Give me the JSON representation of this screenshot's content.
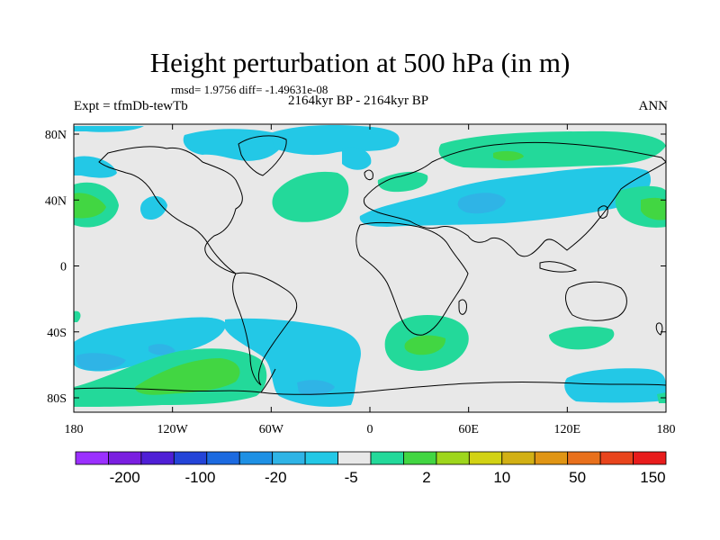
{
  "title": "Height perturbation at 500 hPa (in m)",
  "stats_text": "rmsd= 1.9756 diff= -1.49631e-08",
  "expt_label": "Expt = tfmDb-tewTb",
  "period_label": "2164kyr BP - 2164kyr BP",
  "season_label": "ANN",
  "map": {
    "lon_range": [
      -180,
      180
    ],
    "lat_range": [
      -90,
      90
    ],
    "lat_ticks": [
      "80N",
      "40N",
      "0",
      "40S",
      "80S"
    ],
    "lon_ticks": [
      "180",
      "120W",
      "60W",
      "0",
      "60E",
      "120E",
      "180"
    ],
    "background_color": "#e8e8e8"
  },
  "colorbar": {
    "colors": [
      "#9b30ff",
      "#7a1fe0",
      "#4f1fd6",
      "#2444d8",
      "#1c6ae0",
      "#1e90e4",
      "#2fb4e6",
      "#23c8e6",
      "#e8e8e8",
      "#23d99a",
      "#42d642",
      "#9ed61c",
      "#d2d214",
      "#d2b014",
      "#e09514",
      "#e8701c",
      "#e8441c",
      "#e81c1c"
    ],
    "tick_labels": [
      "-200",
      "-100",
      "-20",
      "-5",
      "2",
      "10",
      "50",
      "150"
    ]
  },
  "chart_data": {
    "type": "heatmap",
    "title": "Height perturbation at 500 hPa (in m)",
    "units": "m",
    "rmsd": 1.9756,
    "diff": -1.49631e-08,
    "contour_levels_left": [
      "-200",
      "-100",
      "-20",
      "-5"
    ],
    "contour_levels_right": [
      "2",
      "10",
      "50",
      "150"
    ],
    "regions": [
      {
        "lon": -170,
        "lat": 42,
        "level": "2 to 10",
        "color": "#42d642"
      },
      {
        "lon": -165,
        "lat": 36,
        "level": "2 to 10",
        "color": "#23d99a"
      },
      {
        "lon": -160,
        "lat": 78,
        "level": "-5 to -2",
        "color": "#23c8e6"
      },
      {
        "lon": -125,
        "lat": 38,
        "level": "-5 to -2",
        "color": "#23c8e6"
      },
      {
        "lon": -60,
        "lat": 80,
        "level": "-5 to -2",
        "color": "#23c8e6"
      },
      {
        "lon": -10,
        "lat": 42,
        "level": "2 to 10",
        "color": "#23d99a"
      },
      {
        "lon": 50,
        "lat": 35,
        "level": "-5 to -2",
        "color": "#23c8e6"
      },
      {
        "lon": 70,
        "lat": 35,
        "level": "-20 to -5",
        "color": "#2fb4e6"
      },
      {
        "lon": 170,
        "lat": 40,
        "level": "2 to 10",
        "color": "#42d642"
      },
      {
        "lon": 90,
        "lat": 78,
        "level": "2 to 10",
        "color": "#23d99a"
      },
      {
        "lon": -40,
        "lat": 70,
        "level": "-5 to -2",
        "color": "#23c8e6"
      },
      {
        "lon": 30,
        "lat": -50,
        "level": "2 to 10",
        "color": "#42d642"
      },
      {
        "lon": 30,
        "lat": -40,
        "level": "2 to 10",
        "color": "#23d99a"
      },
      {
        "lon": 110,
        "lat": -45,
        "level": "2 to 10",
        "color": "#23d99a"
      },
      {
        "lon": 140,
        "lat": -78,
        "level": "-5 to -2",
        "color": "#23c8e6"
      },
      {
        "lon": -150,
        "lat": -55,
        "level": "-20 to -5",
        "color": "#2fb4e6"
      },
      {
        "lon": -90,
        "lat": -75,
        "level": "2 to 10",
        "color": "#42d642"
      },
      {
        "lon": -150,
        "lat": -80,
        "level": "2 to 10",
        "color": "#23d99a"
      },
      {
        "lon": -40,
        "lat": -80,
        "level": "-20 to -5",
        "color": "#2fb4e6"
      },
      {
        "lon": -30,
        "lat": -55,
        "level": "-5 to -2",
        "color": "#23c8e6"
      }
    ]
  }
}
